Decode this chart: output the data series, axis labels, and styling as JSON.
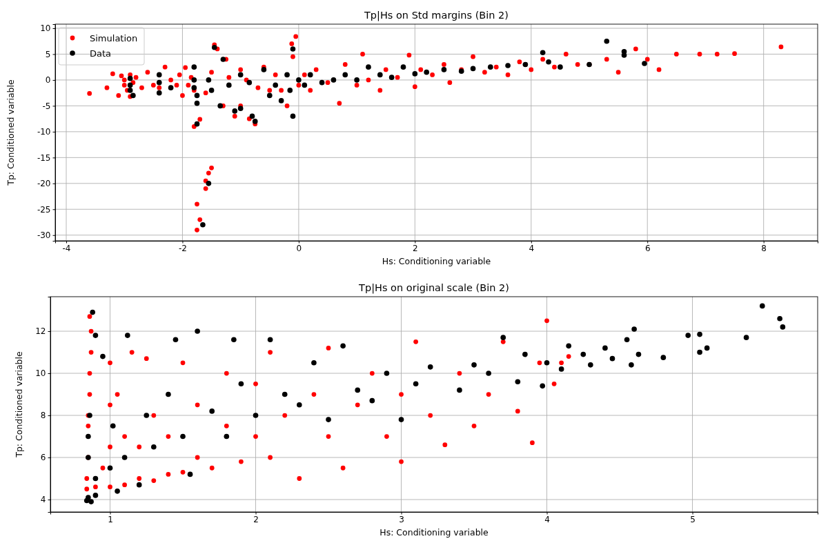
{
  "chart_data": [
    {
      "type": "scatter",
      "title": "Tp|Hs on Std margins (Bin 2)",
      "xlabel": "Hs: Conditioning variable",
      "ylabel": "Tp: Conditioned variable",
      "xlim": [
        -4.19,
        8.93
      ],
      "ylim": [
        -31.1,
        10.8
      ],
      "xticks": [
        -4,
        -2,
        0,
        2,
        4,
        6,
        8
      ],
      "yticks": [
        -30,
        -25,
        -20,
        -15,
        -10,
        -5,
        0,
        5,
        10
      ],
      "grid": true,
      "legend": "top left",
      "marker": "circle",
      "series": [
        {
          "name": "Simulation",
          "color": "#ff0000",
          "x": [
            -3.6,
            -3.3,
            -3.2,
            -3.1,
            -3.05,
            -3,
            -3,
            -2.95,
            -2.9,
            -2.9,
            -2.85,
            -2.8,
            -2.7,
            -2.6,
            -2.5,
            -2.4,
            -2.3,
            -2.2,
            -2.1,
            -2.05,
            -2,
            -1.95,
            -1.9,
            -1.85,
            -1.8,
            -1.75,
            -1.8,
            -1.7,
            -1.75,
            -1.7,
            -1.75,
            -1.6,
            -1.55,
            -1.6,
            -1.5,
            -1.6,
            -1.5,
            -1.45,
            -1.4,
            -1.3,
            -1.25,
            -1.2,
            -1.1,
            -1,
            -1,
            -0.9,
            -0.85,
            -0.75,
            -0.7,
            -0.6,
            -0.5,
            -0.4,
            -0.3,
            -0.2,
            -0.1,
            -0.12,
            -0.05,
            0,
            0.1,
            0.2,
            0.3,
            0.5,
            0.7,
            0.8,
            1,
            1.1,
            1.2,
            1.4,
            1.5,
            1.7,
            1.9,
            2,
            2.1,
            2.3,
            2.5,
            2.6,
            2.8,
            3,
            3.2,
            3.4,
            3.6,
            3.8,
            4,
            4.2,
            4.4,
            4.6,
            4.8,
            5,
            5.3,
            5.5,
            5.8,
            6,
            6.2,
            6.5,
            6.9,
            7.2,
            7.5,
            8.3
          ],
          "values": [
            -2.6,
            -1.5,
            1.2,
            -3,
            0.8,
            -1,
            0,
            -2,
            1,
            -3.2,
            -0.5,
            0.5,
            -1.5,
            1.5,
            -1,
            -1.5,
            2.5,
            0,
            -1,
            1,
            -3,
            2.4,
            -1,
            0.5,
            -2,
            -8.5,
            -9,
            -7.6,
            -24,
            -27,
            -29,
            -21,
            -18,
            -19.5,
            -17,
            -2.5,
            1.5,
            6.8,
            6,
            -5,
            4,
            0.5,
            -7,
            -5,
            2,
            0,
            -7.5,
            -8.5,
            -1.5,
            2.5,
            -2,
            1,
            -2,
            -5,
            4.5,
            7,
            8.4,
            -1,
            1,
            -2,
            2,
            -0.5,
            -4.5,
            3,
            -1,
            5,
            0,
            -2,
            2,
            0.5,
            4.8,
            -1.3,
            2,
            1,
            3,
            -0.5,
            2,
            4.5,
            1.5,
            2.5,
            1,
            3.5,
            2,
            4,
            2.5,
            5,
            3,
            3,
            4,
            1.5,
            6,
            4,
            2,
            5,
            5,
            5,
            5.1,
            6.4
          ]
        },
        {
          "name": "Data",
          "color": "#000000",
          "x": [
            -2.9,
            -2.9,
            -2.9,
            -2.85,
            -2.4,
            -2.4,
            -2.4,
            -2.2,
            -1.8,
            -1.8,
            -1.8,
            -1.75,
            -1.75,
            -1.75,
            -1.65,
            -1.55,
            -1.55,
            -1.5,
            -1.45,
            -1.3,
            -1.35,
            -1.2,
            -1.1,
            -1,
            -1,
            -0.85,
            -0.8,
            -0.75,
            -0.6,
            -0.5,
            -0.4,
            -0.3,
            -0.2,
            -0.15,
            -0.1,
            -0.1,
            0,
            0.1,
            0.2,
            0.4,
            0.6,
            0.8,
            1,
            1.2,
            1.4,
            1.6,
            1.8,
            2,
            2.2,
            2.5,
            2.8,
            3,
            3.3,
            3.6,
            3.9,
            4.2,
            4.3,
            4.5,
            5,
            5.3,
            5.6,
            5.6,
            5.95
          ],
          "values": [
            0.3,
            -1,
            -2,
            -3,
            1,
            -0.5,
            -2.5,
            -1.5,
            2.5,
            0,
            -1.5,
            -3,
            -4.5,
            -8.5,
            -28,
            -20,
            0,
            -2,
            6.3,
            4,
            -5,
            -1,
            -6,
            -5.5,
            1,
            -0.5,
            -7,
            -8,
            2,
            -3,
            -1,
            -4,
            1,
            -2,
            6,
            -7,
            0,
            -1,
            1,
            -0.5,
            0,
            1,
            0,
            2.5,
            1,
            0.5,
            2.5,
            1.2,
            1.5,
            2,
            1.7,
            2.2,
            2.5,
            2.8,
            3,
            5.3,
            3.5,
            2.5,
            3,
            7.5,
            5.5,
            4.8,
            3.2
          ]
        }
      ]
    },
    {
      "type": "scatter",
      "title": "Tp|Hs on original scale (Bin 2)",
      "xlabel": "Hs: Conditioning variable",
      "ylabel": "Tp: Conditioned variable",
      "xlim": [
        0.59,
        5.86
      ],
      "ylim": [
        3.41,
        13.64
      ],
      "xticks": [
        1,
        2,
        3,
        4,
        5
      ],
      "yticks": [
        4,
        6,
        8,
        10,
        12
      ],
      "grid": true,
      "marker": "circle",
      "series": [
        {
          "color": "#ff0000",
          "x": [
            0.84,
            0.84,
            0.85,
            0.85,
            0.85,
            0.86,
            0.86,
            0.87,
            0.87,
            0.86,
            0.9,
            0.95,
            1,
            1,
            1,
            1,
            1.05,
            1.1,
            1.1,
            1.15,
            1.2,
            1.2,
            1.25,
            1.3,
            1.3,
            1.4,
            1.4,
            1.5,
            1.5,
            1.6,
            1.6,
            1.7,
            1.8,
            1.8,
            1.9,
            2,
            2,
            2.1,
            2.1,
            2.2,
            2.3,
            2.4,
            2.5,
            2.5,
            2.6,
            2.7,
            2.8,
            2.9,
            3,
            3,
            3.1,
            3.2,
            3.3,
            3.4,
            3.5,
            3.6,
            3.7,
            3.8,
            3.9,
            3.95,
            4,
            4.05,
            4.1,
            4.15
          ],
          "values": [
            4.5,
            5,
            6,
            7.5,
            8,
            9,
            10,
            11,
            12,
            12.7,
            4.6,
            5.5,
            4.6,
            6.5,
            8.5,
            10.5,
            9,
            4.7,
            7,
            11,
            5,
            6.5,
            10.7,
            4.9,
            8,
            5.2,
            7,
            5.3,
            10.5,
            6,
            8.5,
            5.5,
            7.5,
            10,
            5.8,
            7,
            9.5,
            6,
            11,
            8,
            5,
            9,
            7,
            11.2,
            5.5,
            8.5,
            10,
            7,
            5.8,
            9,
            11.5,
            8,
            6.6,
            10,
            7.5,
            9,
            11.5,
            8.2,
            6.7,
            10.5,
            12.5,
            9.5,
            10.5,
            10.8
          ]
        },
        {
          "color": "#000000",
          "x": [
            0.84,
            0.87,
            0.88,
            0.85,
            0.9,
            0.85,
            0.85,
            0.86,
            0.9,
            0.9,
            0.95,
            1,
            1.02,
            1.05,
            1.1,
            1.12,
            1.2,
            1.25,
            1.3,
            1.4,
            1.45,
            1.5,
            1.55,
            1.6,
            1.7,
            1.8,
            1.85,
            1.9,
            2,
            2.1,
            2.2,
            2.3,
            2.4,
            2.5,
            2.6,
            2.7,
            2.8,
            2.9,
            3,
            3.1,
            3.2,
            3.4,
            3.5,
            3.6,
            3.7,
            3.8,
            3.85,
            3.97,
            4,
            4.1,
            4.15,
            4.25,
            4.3,
            4.4,
            4.45,
            4.55,
            4.58,
            4.6,
            4.63,
            4.8,
            4.97,
            5.05,
            5.05,
            5.1,
            5.37,
            5.48,
            5.6,
            5.62
          ],
          "values": [
            3.95,
            3.9,
            12.9,
            4.1,
            4.2,
            6,
            7,
            8,
            5,
            11.8,
            10.8,
            5.5,
            7.5,
            4.4,
            6,
            11.8,
            4.7,
            8,
            6.5,
            9,
            11.6,
            7,
            5.2,
            12,
            8.2,
            7,
            11.6,
            9.5,
            8,
            11.6,
            9,
            8.5,
            10.5,
            7.8,
            11.3,
            9.2,
            8.7,
            10,
            7.8,
            9.5,
            10.3,
            9.2,
            10.4,
            10,
            11.7,
            9.6,
            10.9,
            9.4,
            10.5,
            10.2,
            11.3,
            10.9,
            10.4,
            11.2,
            10.7,
            11.6,
            10.4,
            12.1,
            10.9,
            10.75,
            11.8,
            11,
            11.85,
            11.2,
            11.7,
            13.2,
            12.6,
            12.2
          ]
        }
      ]
    }
  ]
}
